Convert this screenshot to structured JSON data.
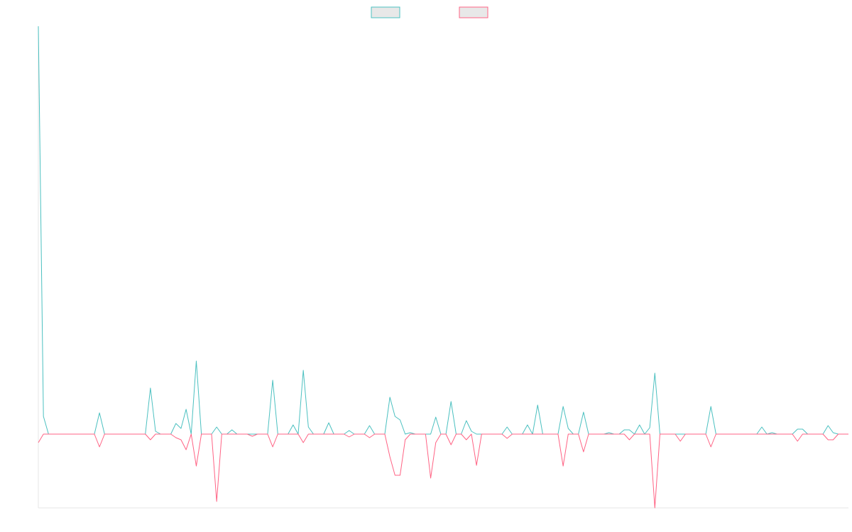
{
  "chart_data": {
    "type": "line",
    "legend": "top",
    "ylim": [
      -104,
      575
    ],
    "series": [
      {
        "color": "#4bc0c0",
        "values": [
          575,
          25,
          0,
          0,
          0,
          0,
          0,
          0,
          0,
          0,
          0,
          0,
          30,
          0,
          0,
          0,
          0,
          0,
          0,
          0,
          0,
          0,
          65,
          4,
          0,
          0,
          0,
          15,
          8,
          35,
          0,
          103,
          0,
          0,
          0,
          10,
          0,
          0,
          6,
          0,
          0,
          0,
          0,
          0,
          0,
          0,
          76,
          0,
          0,
          0,
          13,
          0,
          90,
          10,
          0,
          0,
          0,
          16,
          0,
          0,
          0,
          5,
          0,
          0,
          0,
          12,
          0,
          0,
          0,
          52,
          25,
          20,
          0,
          2,
          0,
          0,
          0,
          0,
          24,
          0,
          0,
          46,
          0,
          0,
          19,
          4,
          0,
          0,
          0,
          0,
          0,
          0,
          10,
          0,
          0,
          0,
          13,
          0,
          41,
          0,
          0,
          0,
          0,
          39,
          8,
          0,
          0,
          31,
          0,
          0,
          0,
          0,
          2,
          0,
          0,
          6,
          6,
          0,
          13,
          0,
          9,
          86,
          0,
          0,
          0,
          0,
          0,
          0,
          0,
          0,
          0,
          0,
          39,
          0,
          0,
          0,
          0,
          0,
          0,
          0,
          0,
          0,
          10,
          0,
          2,
          0,
          0,
          0,
          0,
          7,
          7,
          0,
          0,
          0,
          0,
          12,
          2,
          0,
          0,
          0
        ]
      },
      {
        "color": "#ff6384",
        "values": [
          -12,
          0,
          0,
          0,
          0,
          0,
          0,
          0,
          0,
          0,
          0,
          0,
          -18,
          0,
          0,
          0,
          0,
          0,
          0,
          0,
          0,
          0,
          -8,
          0,
          0,
          0,
          0,
          -5,
          -8,
          -22,
          0,
          -45,
          0,
          0,
          0,
          -95,
          0,
          0,
          0,
          0,
          0,
          0,
          -3,
          0,
          0,
          0,
          -18,
          0,
          0,
          0,
          0,
          0,
          -12,
          0,
          0,
          0,
          0,
          0,
          0,
          0,
          0,
          -4,
          0,
          0,
          0,
          -5,
          0,
          0,
          0,
          -32,
          -58,
          -58,
          -8,
          0,
          0,
          0,
          0,
          -62,
          -12,
          0,
          0,
          -15,
          0,
          0,
          -8,
          0,
          -44,
          0,
          0,
          0,
          0,
          0,
          -6,
          0,
          0,
          0,
          0,
          0,
          0,
          0,
          0,
          0,
          0,
          -45,
          0,
          0,
          0,
          -25,
          0,
          0,
          0,
          0,
          0,
          0,
          0,
          0,
          -8,
          0,
          0,
          0,
          0,
          -104,
          0,
          0,
          0,
          0,
          -10,
          0,
          0,
          0,
          0,
          0,
          -18,
          0,
          0,
          0,
          0,
          0,
          0,
          0,
          0,
          0,
          0,
          0,
          0,
          0,
          0,
          0,
          0,
          -10,
          0,
          0,
          0,
          0,
          0,
          -8,
          -8,
          0,
          0,
          0
        ]
      }
    ]
  }
}
